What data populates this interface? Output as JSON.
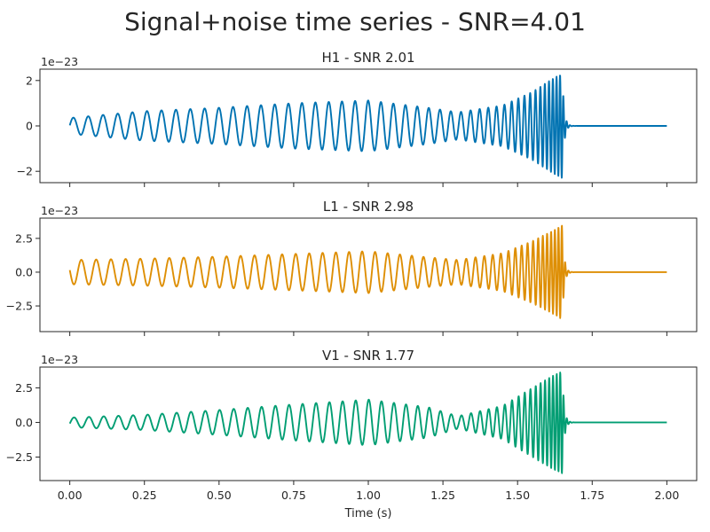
{
  "figure": {
    "title": "Signal+noise time series - SNR=4.01"
  },
  "chart_data": [
    {
      "type": "line",
      "title": "H1 - SNR 2.01",
      "offset_text": "1e−23",
      "xlim": [
        -0.1,
        2.1
      ],
      "ylim": [
        -2.5,
        2.5
      ],
      "xticks": [
        0.0,
        0.25,
        0.5,
        0.75,
        1.0,
        1.25,
        1.5,
        1.75,
        2.0
      ],
      "xtick_labels": [
        "0.00",
        "0.25",
        "0.50",
        "0.75",
        "1.00",
        "1.25",
        "1.50",
        "1.75",
        "2.00"
      ],
      "show_xtick_labels": false,
      "yticks": [
        -2,
        0,
        2
      ],
      "ytick_labels": [
        "−2",
        "0",
        "2"
      ],
      "color": "#0173b2",
      "series": {
        "t_start": 0.0,
        "t_merger": 1.65,
        "t_end": 2.0,
        "phase0": -1.5,
        "envelope": [
          [
            0.0,
            0.35
          ],
          [
            0.25,
            0.65
          ],
          [
            0.5,
            0.8
          ],
          [
            0.75,
            1.0
          ],
          [
            1.0,
            1.12
          ],
          [
            1.2,
            0.8
          ],
          [
            1.3,
            0.6
          ],
          [
            1.45,
            0.9
          ],
          [
            1.55,
            1.5
          ],
          [
            1.62,
            2.1
          ],
          [
            1.65,
            2.3
          ]
        ],
        "frequency": [
          [
            0.0,
            20
          ],
          [
            0.5,
            21
          ],
          [
            1.0,
            23
          ],
          [
            1.25,
            27
          ],
          [
            1.45,
            38
          ],
          [
            1.55,
            55
          ],
          [
            1.65,
            90
          ]
        ]
      }
    },
    {
      "type": "line",
      "title": "L1 - SNR 2.98",
      "offset_text": "1e−23",
      "xlim": [
        -0.1,
        2.1
      ],
      "ylim": [
        -4.4,
        4.0
      ],
      "xticks": [
        0.0,
        0.25,
        0.5,
        0.75,
        1.0,
        1.25,
        1.5,
        1.75,
        2.0
      ],
      "xtick_labels": [
        "0.00",
        "0.25",
        "0.50",
        "0.75",
        "1.00",
        "1.25",
        "1.50",
        "1.75",
        "2.00"
      ],
      "show_xtick_labels": false,
      "yticks": [
        -2.5,
        0.0,
        2.5
      ],
      "ytick_labels": [
        "−2.5",
        "0.0",
        "2.5"
      ],
      "color": "#de8f05",
      "series": {
        "t_start": 0.0,
        "t_merger": 1.65,
        "t_end": 2.0,
        "phase0": 1.4,
        "envelope": [
          [
            0.0,
            0.9
          ],
          [
            0.25,
            1.0
          ],
          [
            0.5,
            1.15
          ],
          [
            0.75,
            1.35
          ],
          [
            1.0,
            1.55
          ],
          [
            1.2,
            1.1
          ],
          [
            1.3,
            0.9
          ],
          [
            1.45,
            1.4
          ],
          [
            1.55,
            2.3
          ],
          [
            1.62,
            3.1
          ],
          [
            1.65,
            3.5
          ]
        ],
        "frequency": [
          [
            0.0,
            20
          ],
          [
            0.5,
            21
          ],
          [
            1.0,
            23
          ],
          [
            1.25,
            27
          ],
          [
            1.45,
            38
          ],
          [
            1.55,
            55
          ],
          [
            1.65,
            90
          ]
        ]
      }
    },
    {
      "type": "line",
      "title": "V1 - SNR 1.77",
      "offset_text": "1e−23",
      "xlim": [
        -0.1,
        2.1
      ],
      "ylim": [
        -4.2,
        4.0
      ],
      "xticks": [
        0.0,
        0.25,
        0.5,
        0.75,
        1.0,
        1.25,
        1.5,
        1.75,
        2.0
      ],
      "xtick_labels": [
        "0.00",
        "0.25",
        "0.50",
        "0.75",
        "1.00",
        "1.25",
        "1.50",
        "1.75",
        "2.00"
      ],
      "show_xtick_labels": true,
      "xlabel": "Time (s)",
      "yticks": [
        -2.5,
        0.0,
        2.5
      ],
      "ytick_labels": [
        "−2.5",
        "0.0",
        "2.5"
      ],
      "color": "#029e73",
      "series": {
        "t_start": 0.0,
        "t_merger": 1.65,
        "t_end": 2.0,
        "phase0": -1.8,
        "envelope": [
          [
            0.0,
            0.35
          ],
          [
            0.25,
            0.55
          ],
          [
            0.5,
            0.9
          ],
          [
            0.75,
            1.3
          ],
          [
            1.0,
            1.65
          ],
          [
            1.2,
            1.1
          ],
          [
            1.3,
            0.45
          ],
          [
            1.45,
            1.2
          ],
          [
            1.55,
            2.5
          ],
          [
            1.62,
            3.4
          ],
          [
            1.65,
            3.7
          ]
        ],
        "frequency": [
          [
            0.0,
            20
          ],
          [
            0.5,
            21
          ],
          [
            1.0,
            23
          ],
          [
            1.25,
            27
          ],
          [
            1.45,
            38
          ],
          [
            1.55,
            55
          ],
          [
            1.65,
            90
          ]
        ]
      }
    }
  ]
}
